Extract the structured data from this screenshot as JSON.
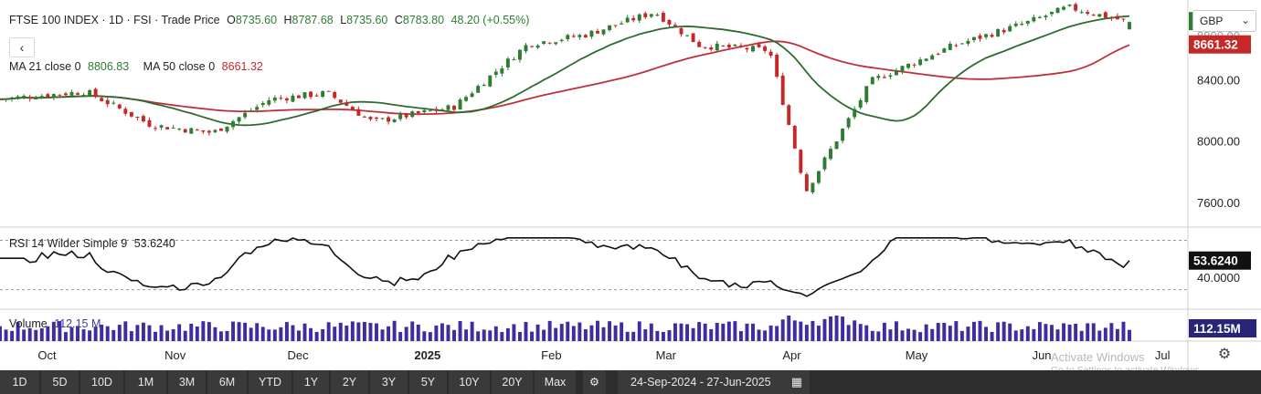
{
  "header": {
    "title": "FTSE 100 INDEX · 1D · FSI · Trade Price",
    "ohlc": [
      {
        "label": "O",
        "value": "8735.60"
      },
      {
        "label": "H",
        "value": "8787.68"
      },
      {
        "label": "L",
        "value": "8735.60"
      },
      {
        "label": "C",
        "value": "8783.80"
      }
    ],
    "change": "48.20 (+0.55%)"
  },
  "back_label": "‹",
  "ma_legend": {
    "ma21_label": "MA 21 close 0",
    "ma21_value": "8806.83",
    "ma50_label": "MA 50 close 0",
    "ma50_value": "8661.32"
  },
  "rsi_legend": {
    "label": "RSI 14 Wilder Simple 9",
    "value": "53.6240"
  },
  "volume_legend": {
    "label": "Volume",
    "value": "112.15 M"
  },
  "currency": {
    "selected": "GBP"
  },
  "price_axis": {
    "ticks": [
      "8400.00",
      "8000.00",
      "7600.00"
    ],
    "top_partial": "8800.00",
    "last_price": "8783.80",
    "ma50_badge": "8661.32"
  },
  "rsi_axis": {
    "tick": "40.0000",
    "badge": "53.6240"
  },
  "volume_axis": {
    "badge": "112.15M"
  },
  "time_axis": [
    {
      "label": "Oct",
      "bold": false
    },
    {
      "label": "Nov",
      "bold": false
    },
    {
      "label": "Dec",
      "bold": false
    },
    {
      "label": "2025",
      "bold": true
    },
    {
      "label": "Feb",
      "bold": false
    },
    {
      "label": "Mar",
      "bold": false
    },
    {
      "label": "Apr",
      "bold": false
    },
    {
      "label": "May",
      "bold": false
    },
    {
      "label": "Jun",
      "bold": false
    },
    {
      "label": "Jul",
      "bold": false
    }
  ],
  "toolbar": {
    "timeframes": [
      "1D",
      "5D",
      "10D",
      "1M",
      "3M",
      "6M",
      "YTD",
      "1Y",
      "2Y",
      "3Y",
      "5Y",
      "10Y",
      "20Y",
      "Max"
    ],
    "date_from": "24-Sep-2024",
    "date_sep": "-",
    "date_to": "27-Jun-2025"
  },
  "watermark": {
    "line1": "Activate Windows",
    "line2": "Go to Settings to activate Windows."
  },
  "colors": {
    "up": "#2e7d32",
    "down": "#c62828",
    "ma21": "#2e6b2e",
    "ma50": "#c0303a",
    "rsi": "#111111",
    "volume": "#3d2d9e",
    "toolbar_bg": "#2d2d2d"
  },
  "chart_data": {
    "type": "line",
    "title": "FTSE 100 INDEX · 1D · FSI · Trade Price",
    "price_ylim": [
      7450,
      8880
    ],
    "rsi_ylim": [
      15,
      80
    ],
    "rsi_reference_lines": [
      70,
      30
    ],
    "price_close_approx": [
      {
        "date": "2024-09-24",
        "value": 8280
      },
      {
        "date": "2024-10-15",
        "value": 8330
      },
      {
        "date": "2024-10-31",
        "value": 8110
      },
      {
        "date": "2024-11-15",
        "value": 8060
      },
      {
        "date": "2024-11-29",
        "value": 8280
      },
      {
        "date": "2024-12-13",
        "value": 8320
      },
      {
        "date": "2024-12-24",
        "value": 8130
      },
      {
        "date": "2025-01-13",
        "value": 8230
      },
      {
        "date": "2025-01-31",
        "value": 8640
      },
      {
        "date": "2025-02-14",
        "value": 8700
      },
      {
        "date": "2025-03-03",
        "value": 8850
      },
      {
        "date": "2025-03-14",
        "value": 8630
      },
      {
        "date": "2025-03-31",
        "value": 8600
      },
      {
        "date": "2025-04-09",
        "value": 7680
      },
      {
        "date": "2025-04-25",
        "value": 8400
      },
      {
        "date": "2025-05-15",
        "value": 8630
      },
      {
        "date": "2025-06-02",
        "value": 8780
      },
      {
        "date": "2025-06-12",
        "value": 8880
      },
      {
        "date": "2025-06-27",
        "value": 8783.8
      }
    ],
    "series": [
      {
        "name": "MA 21 close 0",
        "last": 8806.83
      },
      {
        "name": "MA 50 close 0",
        "last": 8661.32
      },
      {
        "name": "RSI 14 Wilder Simple 9",
        "last": 53.624
      },
      {
        "name": "Volume",
        "last": 112.15
      }
    ]
  }
}
